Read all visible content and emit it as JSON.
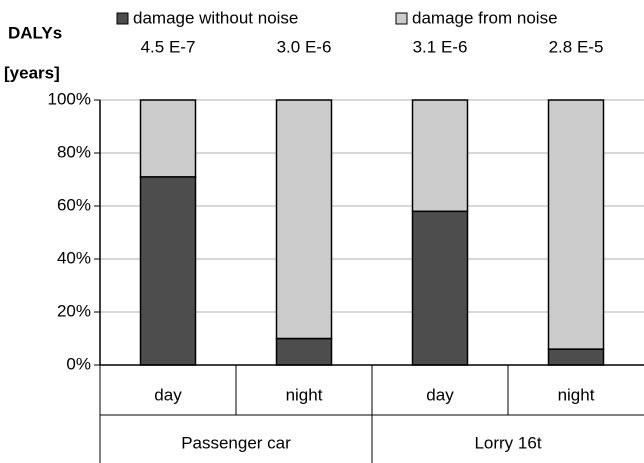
{
  "chart_data": {
    "type": "stacked_bar",
    "ylabel": [
      "DALYs",
      "[years]"
    ],
    "categories": [
      "day",
      "night",
      "day",
      "night"
    ],
    "x_groups": [
      "Passenger car",
      "Lorry 16t"
    ],
    "annotations": [
      "4.5 E-7",
      "3.0 E-6",
      "3.1 E-6",
      "2.8 E-5"
    ],
    "series": [
      {
        "name": "damage without noise",
        "color": "#4d4d4d",
        "values": [
          71,
          10,
          58,
          6
        ]
      },
      {
        "name": "damage from noise",
        "color": "#cccccc",
        "values": [
          29,
          90,
          42,
          94
        ]
      }
    ],
    "ylim": [
      0,
      100
    ],
    "yticks": [
      {
        "value": 0,
        "label": "0%"
      },
      {
        "value": 20,
        "label": "20%"
      },
      {
        "value": 40,
        "label": "40%"
      },
      {
        "value": 60,
        "label": "60%"
      },
      {
        "value": 80,
        "label": "80%"
      },
      {
        "value": 100,
        "label": "100%"
      }
    ],
    "grid": true
  }
}
